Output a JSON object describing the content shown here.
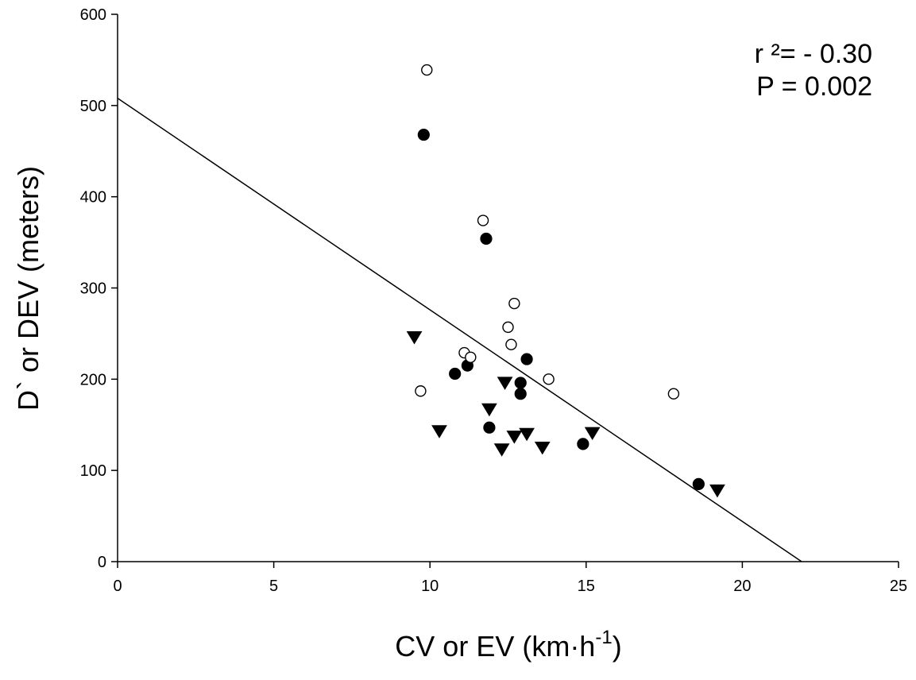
{
  "chart_data": {
    "type": "scatter",
    "title": "",
    "xlabel": "CV or EV (km·h",
    "xlabel_sup": "-1",
    "xlabel_end": ")",
    "ylabel": "D` or DEV (meters)",
    "xlim": [
      0,
      25
    ],
    "ylim": [
      0,
      600
    ],
    "x_ticks": [
      "0",
      "5",
      "10",
      "15",
      "20",
      "25"
    ],
    "y_ticks": [
      "0",
      "100",
      "200",
      "300",
      "400",
      "500",
      "600"
    ],
    "grid": false,
    "legend": "none",
    "annotations": {
      "r2": "r ²= - 0.30",
      "p": "P = 0.002"
    },
    "regression_line": {
      "x1": 0,
      "y1": 508,
      "x2": 21.9,
      "y2": 0
    },
    "series": [
      {
        "marker": "filled-circle",
        "points": [
          {
            "x": 9.8,
            "y": 468
          },
          {
            "x": 11.8,
            "y": 354
          },
          {
            "x": 13.1,
            "y": 222
          },
          {
            "x": 11.2,
            "y": 215
          },
          {
            "x": 10.8,
            "y": 206
          },
          {
            "x": 12.9,
            "y": 196
          },
          {
            "x": 12.9,
            "y": 184
          },
          {
            "x": 11.9,
            "y": 147
          },
          {
            "x": 14.9,
            "y": 129
          },
          {
            "x": 18.6,
            "y": 85
          }
        ]
      },
      {
        "marker": "open-circle",
        "points": [
          {
            "x": 9.9,
            "y": 539
          },
          {
            "x": 11.7,
            "y": 374
          },
          {
            "x": 12.7,
            "y": 283
          },
          {
            "x": 12.5,
            "y": 257
          },
          {
            "x": 12.6,
            "y": 238
          },
          {
            "x": 11.1,
            "y": 229
          },
          {
            "x": 11.3,
            "y": 224
          },
          {
            "x": 13.8,
            "y": 200
          },
          {
            "x": 9.7,
            "y": 187
          },
          {
            "x": 17.8,
            "y": 184
          }
        ]
      },
      {
        "marker": "filled-triangle-down",
        "points": [
          {
            "x": 9.5,
            "y": 246
          },
          {
            "x": 12.4,
            "y": 196
          },
          {
            "x": 11.9,
            "y": 167
          },
          {
            "x": 10.3,
            "y": 143
          },
          {
            "x": 12.7,
            "y": 137
          },
          {
            "x": 13.1,
            "y": 140
          },
          {
            "x": 15.2,
            "y": 141
          },
          {
            "x": 12.3,
            "y": 123
          },
          {
            "x": 13.6,
            "y": 125
          },
          {
            "x": 19.2,
            "y": 78
          }
        ]
      }
    ]
  }
}
